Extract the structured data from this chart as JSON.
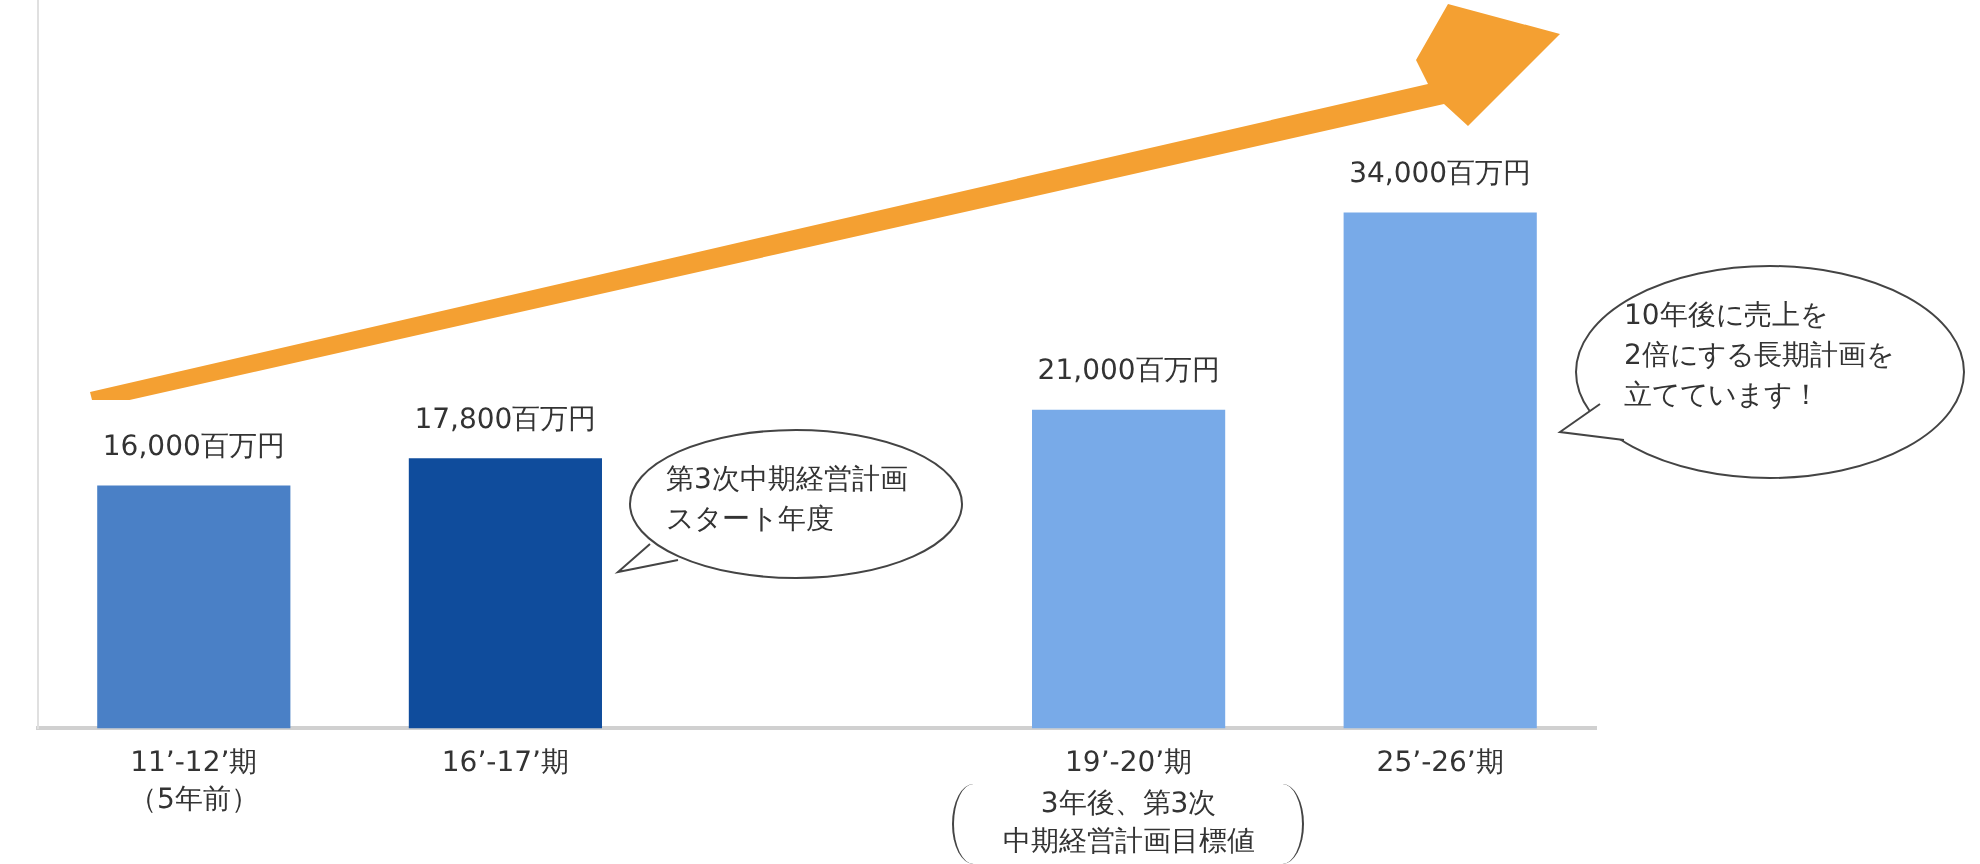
{
  "chart_data": {
    "type": "bar",
    "categories": [
      "11’-12’期（5年前）",
      "16’-17’期",
      null,
      "19’-20’期",
      "25’-26’期"
    ],
    "values": [
      16000,
      17800,
      null,
      21000,
      34000
    ],
    "colors": [
      "#4a80c6",
      "#0f4c9c",
      "#78aae8",
      "#78aae8",
      "#78aae8"
    ],
    "value_labels": [
      "16,000百万円",
      "17,800百万円",
      null,
      "21,000百万円",
      "34,000百万円"
    ],
    "ylim": [
      0,
      48000
    ],
    "tick_labels": "x",
    "grid": false,
    "legend": false,
    "annotations": [
      "第3次中期経営計画",
      "スタート年度",
      "10年後に売上を",
      "2倍にする長期計画を",
      "立てています！",
      "3年後、第3次",
      "中期経営計画目標値"
    ]
  }
}
